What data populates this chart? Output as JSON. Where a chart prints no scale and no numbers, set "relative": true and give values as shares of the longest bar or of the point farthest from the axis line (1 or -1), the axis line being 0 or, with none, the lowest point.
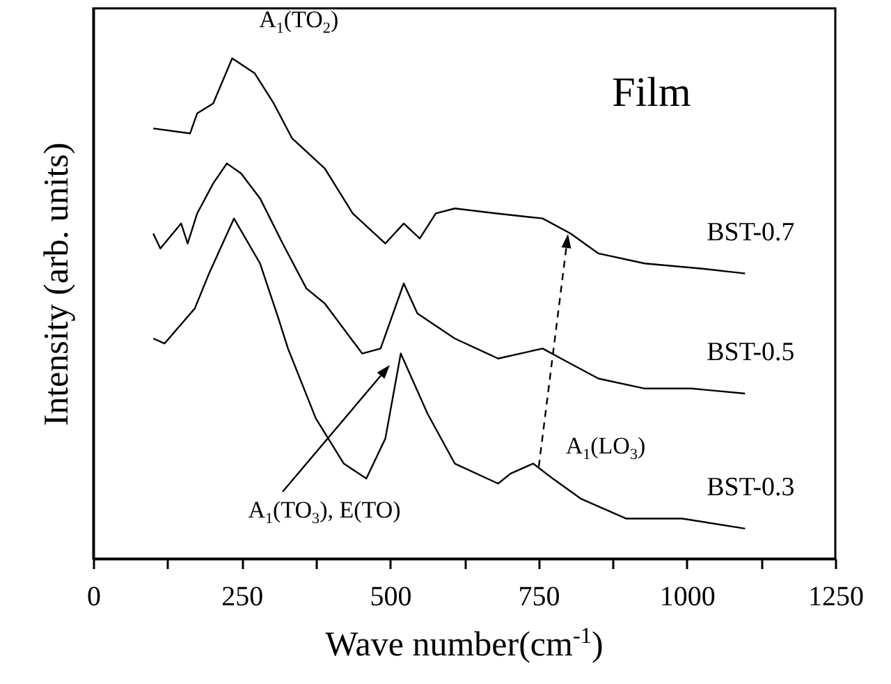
{
  "chart_data": {
    "type": "line",
    "xlabel": "Wave number(cm$^{-1}$)",
    "ylabel": "Intensity (arb. units)",
    "relative": true,
    "xlim": [
      0,
      1250
    ],
    "xticks": [
      0,
      {
        "value": 125,
        "label": null
      },
      250,
      {
        "value": 375,
        "label": null
      },
      500,
      {
        "value": 625,
        "label": null
      },
      750,
      {
        "value": 875,
        "label": null
      },
      1000,
      {
        "value": 1125,
        "label": null
      },
      1250
    ],
    "annotations": [
      {
        "text": "A$_{1}$(TO$_{2}$)",
        "x": 250,
        "y": 0.97
      },
      "A$_{1}$(TO$_{3}$), E(TO)",
      "A$_{1}$(LO$_{3}$)",
      "Film"
    ],
    "series": [
      {
        "name": "BST-0.7",
        "color": "#000000",
        "x": [
          101,
          163,
          175,
          202,
          234,
          272,
          304,
          335,
          390,
          437,
          492,
          523,
          550,
          577,
          609,
          680,
          757,
          804,
          851,
          929,
          1023,
          1098
        ],
        "values": [
          0.86,
          0.85,
          0.89,
          0.91,
          1.0,
          0.97,
          0.91,
          0.84,
          0.78,
          0.69,
          0.63,
          0.67,
          0.64,
          0.69,
          0.7,
          0.69,
          0.68,
          0.65,
          0.61,
          0.59,
          0.58,
          0.57
        ]
      },
      {
        "name": "BST-0.5",
        "color": "#000000",
        "x": [
          101,
          113,
          148,
          159,
          175,
          202,
          225,
          249,
          281,
          319,
          359,
          390,
          453,
          484,
          523,
          546,
          609,
          682,
          757,
          788,
          851,
          929,
          1008,
          1098
        ],
        "values": [
          0.65,
          0.62,
          0.67,
          0.63,
          0.69,
          0.75,
          0.79,
          0.77,
          0.72,
          0.63,
          0.54,
          0.51,
          0.41,
          0.42,
          0.55,
          0.49,
          0.44,
          0.4,
          0.42,
          0.4,
          0.36,
          0.34,
          0.34,
          0.33
        ]
      },
      {
        "name": "BST-0.3",
        "color": "#000000",
        "x": [
          101,
          120,
          171,
          195,
          237,
          281,
          312,
          328,
          375,
          422,
          460,
          492,
          518,
          563,
          609,
          682,
          703,
          741,
          774,
          821,
          898,
          992,
          1098
        ],
        "values": [
          0.44,
          0.43,
          0.5,
          0.57,
          0.68,
          0.59,
          0.48,
          0.42,
          0.28,
          0.19,
          0.16,
          0.24,
          0.41,
          0.29,
          0.19,
          0.15,
          0.17,
          0.19,
          0.16,
          0.12,
          0.08,
          0.08,
          0.06
        ]
      }
    ]
  }
}
